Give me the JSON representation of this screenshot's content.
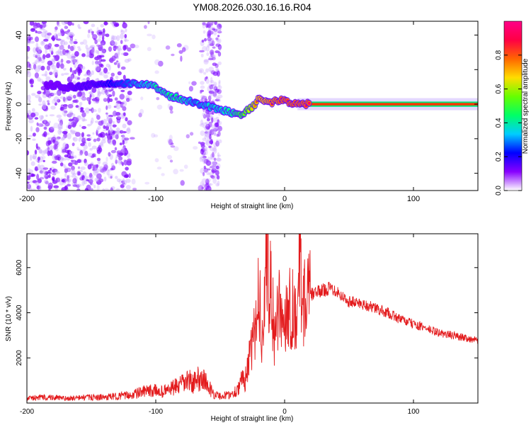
{
  "figure_title": "YM08.2026.030.16.16.R04",
  "chart_data": [
    {
      "type": "heatmap",
      "title": "YM08.2026.030.16.16.R04",
      "xlabel": "Height of straight line (km)",
      "ylabel": "Frequency (Hz)",
      "xlim": [
        -200,
        150
      ],
      "ylim": [
        -50,
        48
      ],
      "xticks": [
        -200,
        -100,
        0,
        100
      ],
      "yticks": [
        -40,
        -20,
        0,
        20,
        40
      ],
      "colorbar": {
        "label": "Normalized spectral amplitude",
        "range": [
          0,
          1
        ],
        "ticks": [
          0.0,
          0.2,
          0.4,
          0.6,
          0.8
        ],
        "colors": [
          "#ffffff",
          "#8800ff",
          "#0000ff",
          "#00ccff",
          "#00ff66",
          "#66ff00",
          "#ffdd00",
          "#ff6600",
          "#ff0044",
          "#ff0088"
        ]
      },
      "ridge": {
        "x": [
          -180,
          -170,
          -160,
          -150,
          -140,
          -130,
          -120,
          -110,
          -100,
          -90,
          -80,
          -70,
          -60,
          -50,
          -40,
          -35,
          -30,
          -25,
          -20,
          -15,
          -10,
          -5,
          0,
          5,
          10,
          20,
          40,
          60,
          80,
          100,
          120,
          150
        ],
        "freq": [
          11,
          10,
          10,
          11,
          12,
          11,
          12,
          12,
          10,
          5,
          3,
          1,
          -1,
          -3,
          -5,
          -6,
          -4,
          -2,
          3,
          2,
          1,
          2,
          2,
          1,
          0,
          0,
          0,
          0,
          0,
          0,
          0,
          0
        ],
        "amplitude": [
          0.15,
          0.15,
          0.2,
          0.2,
          0.25,
          0.3,
          0.35,
          0.4,
          0.45,
          0.45,
          0.45,
          0.35,
          0.4,
          0.4,
          0.45,
          0.55,
          0.6,
          0.7,
          0.85,
          0.85,
          0.9,
          0.92,
          0.95,
          0.95,
          0.95,
          0.95,
          0.93,
          0.9,
          0.85,
          0.85,
          0.8,
          0.75
        ]
      },
      "noise_regions": [
        {
          "x": [
            -200,
            -120
          ],
          "freq": [
            -50,
            48
          ],
          "amplitude": 0.15
        },
        {
          "x": [
            -65,
            -50
          ],
          "freq": [
            -50,
            48
          ],
          "amplitude": 0.1
        },
        {
          "x": [
            -200,
            -50
          ],
          "freq": [
            -50,
            48
          ],
          "amplitude": 0.05
        }
      ]
    },
    {
      "type": "line",
      "xlabel": "Height of straight line (km)",
      "ylabel": "SNR (10 * v/v)",
      "xlim": [
        -200,
        150
      ],
      "ylim": [
        0,
        7500
      ],
      "xticks": [
        -200,
        -100,
        0,
        100
      ],
      "yticks": [
        2000,
        4000,
        6000
      ],
      "series": [
        {
          "name": "SNR",
          "color": "#e31a1c",
          "x": [
            -200,
            -190,
            -180,
            -170,
            -160,
            -150,
            -140,
            -130,
            -120,
            -110,
            -100,
            -95,
            -90,
            -85,
            -80,
            -75,
            -70,
            -65,
            -60,
            -55,
            -50,
            -45,
            -40,
            -35,
            -30,
            -28,
            -25,
            -22,
            -20,
            -18,
            -16,
            -14,
            -13,
            -12,
            -11,
            -10,
            -9,
            -8,
            -6,
            -4,
            -2,
            0,
            2,
            4,
            6,
            8,
            10,
            12,
            14,
            16,
            20,
            25,
            30,
            35,
            40,
            45,
            50,
            60,
            70,
            80,
            90,
            100,
            110,
            120,
            130,
            140,
            150
          ],
          "values": [
            200,
            250,
            250,
            200,
            230,
            250,
            250,
            300,
            350,
            500,
            550,
            500,
            600,
            700,
            800,
            1000,
            900,
            1200,
            800,
            400,
            300,
            350,
            400,
            800,
            1200,
            1800,
            2500,
            3500,
            5500,
            3000,
            4000,
            6500,
            7200,
            3000,
            6800,
            2500,
            4500,
            2800,
            3500,
            4200,
            3500,
            3800,
            4200,
            4400,
            4200,
            4100,
            4000,
            6700,
            4300,
            4600,
            4800,
            4900,
            5000,
            5100,
            5000,
            4700,
            4500,
            4400,
            4200,
            4000,
            3700,
            3500,
            3300,
            3100,
            3000,
            2900,
            2750
          ]
        }
      ]
    }
  ]
}
